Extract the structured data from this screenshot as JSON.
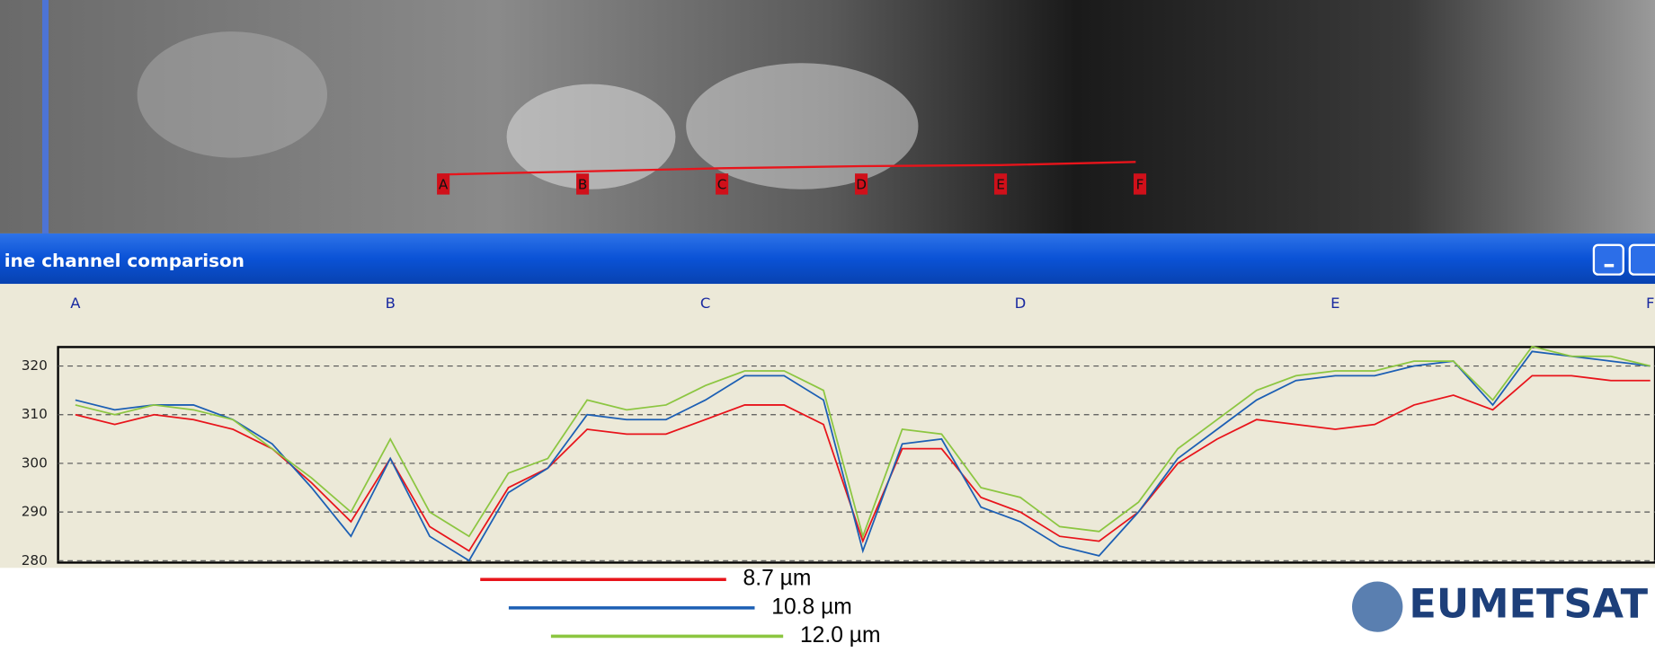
{
  "map": {
    "markers": [
      "A",
      "B",
      "C",
      "D",
      "E",
      "F"
    ]
  },
  "window": {
    "title": "ine channel comparison"
  },
  "logo": "EUMETSAT",
  "chart_data": {
    "type": "line",
    "x": [
      0,
      2.5,
      5,
      7.5,
      10,
      12.5,
      15,
      17.5,
      20,
      22.5,
      25,
      27.5,
      30,
      32.5,
      35,
      37.5,
      40,
      42.5,
      45,
      47.5,
      50,
      52.5,
      55,
      57.5,
      60,
      62.5,
      65,
      67.5,
      70,
      72.5,
      75,
      77.5,
      80,
      82.5,
      85,
      87.5,
      90,
      92.5,
      95,
      97.5,
      100
    ],
    "xlim": [
      -1.1,
      100.3
    ],
    "xticks": [
      {
        "value": 0,
        "label": "A"
      },
      {
        "value": 20,
        "label": "B"
      },
      {
        "value": 40,
        "label": "C"
      },
      {
        "value": 60,
        "label": "D"
      },
      {
        "value": 80,
        "label": "E"
      },
      {
        "value": 100,
        "label": "F"
      }
    ],
    "ylim": [
      279.6,
      323.9
    ],
    "yticks": [
      280,
      290,
      300,
      310,
      320
    ],
    "grid": true,
    "series": [
      {
        "name": "8.7 µm",
        "color": "#e8141b",
        "values": [
          310,
          308,
          310,
          309,
          307,
          303,
          296,
          288,
          301,
          287,
          282,
          295,
          299,
          307,
          306,
          306,
          309,
          312,
          312,
          308,
          284,
          303,
          303,
          293,
          290,
          285,
          284,
          290,
          300,
          305,
          309,
          308,
          307,
          308,
          312,
          314,
          311,
          318,
          318,
          317,
          317
        ]
      },
      {
        "name": "10.8 µm",
        "color": "#1c5fb4",
        "values": [
          313,
          311,
          312,
          312,
          309,
          304,
          295,
          285,
          301,
          285,
          280,
          294,
          299,
          310,
          309,
          309,
          313,
          318,
          318,
          313,
          282,
          304,
          305,
          291,
          288,
          283,
          281,
          290,
          301,
          307,
          313,
          317,
          318,
          318,
          320,
          321,
          312,
          323,
          322,
          321,
          320
        ]
      },
      {
        "name": "12.0 µm",
        "color": "#8cc641",
        "values": [
          312,
          310,
          312,
          311,
          309,
          303,
          297,
          290,
          305,
          290,
          285,
          298,
          301,
          313,
          311,
          312,
          316,
          319,
          319,
          315,
          285,
          307,
          306,
          295,
          293,
          287,
          286,
          292,
          303,
          309,
          315,
          318,
          319,
          319,
          321,
          321,
          313,
          324,
          322,
          322,
          320
        ]
      }
    ]
  }
}
